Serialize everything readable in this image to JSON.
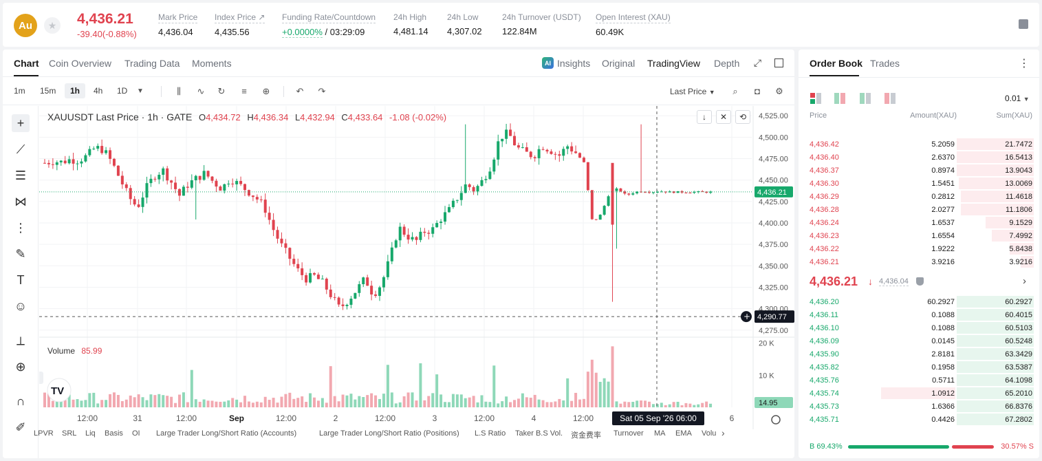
{
  "ticker": {
    "logo_text": "Au",
    "last_price": "4,436.21",
    "change": "-39.40(-0.88%)",
    "stats": [
      {
        "label": "Mark Price",
        "value": "4,436.04"
      },
      {
        "label": "Index Price ↗",
        "value": "4,435.56"
      },
      {
        "label": "Funding Rate/Countdown",
        "value_green": "+0.0000%",
        "value_rest": " / 03:29:09"
      },
      {
        "label": "24h High",
        "value": "4,481.14"
      },
      {
        "label": "24h Low",
        "value": "4,307.02"
      },
      {
        "label": "24h Turnover (USDT)",
        "value": "122.84M"
      },
      {
        "label": "Open Interest (XAU)",
        "value": "60.49K"
      }
    ]
  },
  "chart_tabs": [
    "Chart",
    "Coin Overview",
    "Trading Data",
    "Moments"
  ],
  "view_tabs": [
    "Insights",
    "Original",
    "TradingView",
    "Depth"
  ],
  "insights_badge": "AI",
  "timeframes": [
    "1m",
    "15m",
    "1h",
    "4h",
    "1D"
  ],
  "price_type": "Last Price",
  "legend": {
    "symbol": "XAUUSDT Last Price · 1h · GATE",
    "o_label": "O",
    "o": "4,434.72",
    "h_label": "H",
    "h": "4,436.34",
    "l_label": "L",
    "l": "4,432.94",
    "c_label": "C",
    "c": "4,433.64",
    "chg": "-1.08 (-0.02%)"
  },
  "volume_legend": {
    "label": "Volume",
    "value": "85.99"
  },
  "crosshair": {
    "price_label": "4,290.77",
    "time_label": "Sat 05 Sep '26   06:00",
    "price": 4290.77
  },
  "last_price_label": "4,436.21",
  "volume_last_label": "14.95",
  "indicators": [
    "LPVR",
    "SRL",
    "Liq",
    "Basis",
    "OI",
    "Large Trader Long/Short Ratio (Accounts)",
    "Large Trader Long/Short Ratio (Positions)",
    "L.S Ratio",
    "Taker B.S Vol.",
    "资金费率",
    "Turnover",
    "MA",
    "EMA",
    "Volu"
  ],
  "chart_data": {
    "type": "candlestick",
    "price_axis": {
      "ticks": [
        "4,525.00",
        "4,500.00",
        "4,475.00",
        "4,450.00",
        "4,425.00",
        "4,400.00",
        "4,375.00",
        "4,350.00",
        "4,325.00",
        "4,300.00",
        "4,275.00"
      ],
      "range": [
        4270,
        4530
      ]
    },
    "volume_axis": {
      "ticks": [
        "20 K",
        "10 K"
      ],
      "range": [
        0,
        21000
      ]
    },
    "x_ticks": [
      "12:00",
      "31",
      "12:00",
      "Sep",
      "12:00",
      "2",
      "12:00",
      "3",
      "12:00",
      "4",
      "12:00",
      "6"
    ],
    "close_path": [
      4470,
      4472,
      4471,
      4474,
      4473,
      4478,
      4488,
      4485,
      4470,
      4450,
      4430,
      4418,
      4440,
      4455,
      4462,
      4448,
      4432,
      4445,
      4452,
      4458,
      4448,
      4440,
      4452,
      4445,
      4438,
      4430,
      4420,
      4395,
      4375,
      4360,
      4345,
      4335,
      4338,
      4330,
      4315,
      4300,
      4310,
      4322,
      4335,
      4316,
      4330,
      4360,
      4395,
      4385,
      4378,
      4390,
      4392,
      4405,
      4415,
      4430,
      4445,
      4438,
      4450,
      4468,
      4500,
      4505,
      4488,
      4482,
      4478,
      4490,
      4485,
      4478,
      4490,
      4482,
      4470,
      4400,
      4410,
      4435,
      4440,
      4432,
      4436,
      4437,
      4436,
      4437,
      4436,
      4436,
      4436,
      4436,
      4436,
      4436
    ]
  },
  "orderbook": {
    "tabs": [
      "Order Book",
      "Trades"
    ],
    "precision": "0.01",
    "headers": {
      "price": "Price",
      "amount": "Amount(XAU)",
      "sum": "Sum(XAU)"
    },
    "asks": [
      {
        "price": "4,436.42",
        "amount": "5.2059",
        "sum": "21.7472",
        "depth": 0.35
      },
      {
        "price": "4,436.40",
        "amount": "2.6370",
        "sum": "16.5413",
        "depth": 0.35
      },
      {
        "price": "4,436.37",
        "amount": "0.8974",
        "sum": "13.9043",
        "depth": 0.35
      },
      {
        "price": "4,436.30",
        "amount": "1.5451",
        "sum": "13.0069",
        "depth": 0.34
      },
      {
        "price": "4,436.29",
        "amount": "0.2812",
        "sum": "11.4618",
        "depth": 0.33
      },
      {
        "price": "4,436.28",
        "amount": "2.0277",
        "sum": "11.1806",
        "depth": 0.33
      },
      {
        "price": "4,436.24",
        "amount": "1.6537",
        "sum": "9.1529",
        "depth": 0.22
      },
      {
        "price": "4,436.23",
        "amount": "1.6554",
        "sum": "7.4992",
        "depth": 0.19
      },
      {
        "price": "4,436.22",
        "amount": "1.9222",
        "sum": "5.8438",
        "depth": 0.11
      },
      {
        "price": "4,436.21",
        "amount": "3.9216",
        "sum": "3.9216",
        "depth": 0.06
      }
    ],
    "mid_price": "4,436.21",
    "mid_arrow": "↓",
    "mark_price": "4,436.04",
    "bids": [
      {
        "price": "4,436.20",
        "amount": "60.2927",
        "sum": "60.2927",
        "depth": 0.35
      },
      {
        "price": "4,436.11",
        "amount": "0.1088",
        "sum": "60.4015",
        "depth": 0.35
      },
      {
        "price": "4,436.10",
        "amount": "0.1088",
        "sum": "60.5103",
        "depth": 0.35
      },
      {
        "price": "4,436.09",
        "amount": "0.0145",
        "sum": "60.5248",
        "depth": 0.35
      },
      {
        "price": "4,435.90",
        "amount": "2.8181",
        "sum": "63.3429",
        "depth": 0.35
      },
      {
        "price": "4,435.82",
        "amount": "0.1958",
        "sum": "63.5387",
        "depth": 0.35
      },
      {
        "price": "4,435.76",
        "amount": "0.5711",
        "sum": "64.1098",
        "depth": 0.35
      },
      {
        "price": "4,435.74",
        "amount": "1.0912",
        "sum": "65.2010",
        "depth": 0.35,
        "highlight": true
      },
      {
        "price": "4,435.73",
        "amount": "1.6366",
        "sum": "66.8376",
        "depth": 0.35
      },
      {
        "price": "4,435.71",
        "amount": "0.4426",
        "sum": "67.2802",
        "depth": 0.35
      }
    ],
    "buy_ratio": "B 69.43%",
    "sell_ratio": "30.57% S",
    "buy_fraction": 0.6943
  },
  "colors": {
    "up": "#17a86b",
    "down": "#e0434f",
    "up_vol": "#8ed8b8",
    "down_vol": "#f2a8b0",
    "brand": "#e3a21a"
  }
}
